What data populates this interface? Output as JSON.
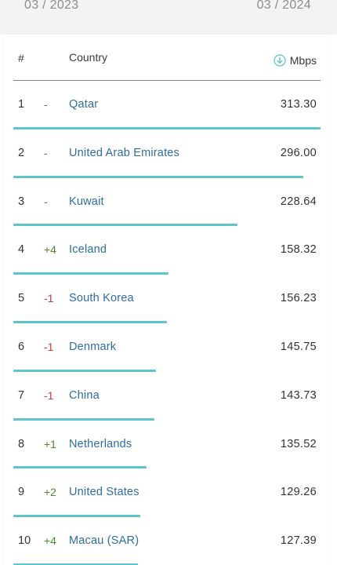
{
  "dates": {
    "start": "03 / 2023",
    "end": "03 / 2024"
  },
  "table": {
    "headers": {
      "rank": "#",
      "country": "Country",
      "speed": "Mbps"
    },
    "sort_icon": "arrow-down-circle-icon",
    "bar_color": "#5fc4cc",
    "max_value": 313.3,
    "rows": [
      {
        "rank": "1",
        "change": "-",
        "change_type": "neutral",
        "country": "Qatar",
        "value": "313.30",
        "mbps": 313.3
      },
      {
        "rank": "2",
        "change": "-",
        "change_type": "neutral",
        "country": "United Arab Emirates",
        "value": "296.00",
        "mbps": 296.0
      },
      {
        "rank": "3",
        "change": "-",
        "change_type": "neutral",
        "country": "Kuwait",
        "value": "228.64",
        "mbps": 228.64
      },
      {
        "rank": "4",
        "change": "+4",
        "change_type": "up",
        "country": "Iceland",
        "value": "158.32",
        "mbps": 158.32
      },
      {
        "rank": "5",
        "change": "-1",
        "change_type": "down",
        "country": "South Korea",
        "value": "156.23",
        "mbps": 156.23
      },
      {
        "rank": "6",
        "change": "-1",
        "change_type": "down",
        "country": "Denmark",
        "value": "145.75",
        "mbps": 145.75
      },
      {
        "rank": "7",
        "change": "-1",
        "change_type": "down",
        "country": "China",
        "value": "143.73",
        "mbps": 143.73
      },
      {
        "rank": "8",
        "change": "+1",
        "change_type": "up",
        "country": "Netherlands",
        "value": "135.52",
        "mbps": 135.52
      },
      {
        "rank": "9",
        "change": "+2",
        "change_type": "up",
        "country": "United States",
        "value": "129.26",
        "mbps": 129.26
      },
      {
        "rank": "10",
        "change": "+4",
        "change_type": "up",
        "country": "Macau (SAR)",
        "value": "127.39",
        "mbps": 127.39
      }
    ]
  }
}
